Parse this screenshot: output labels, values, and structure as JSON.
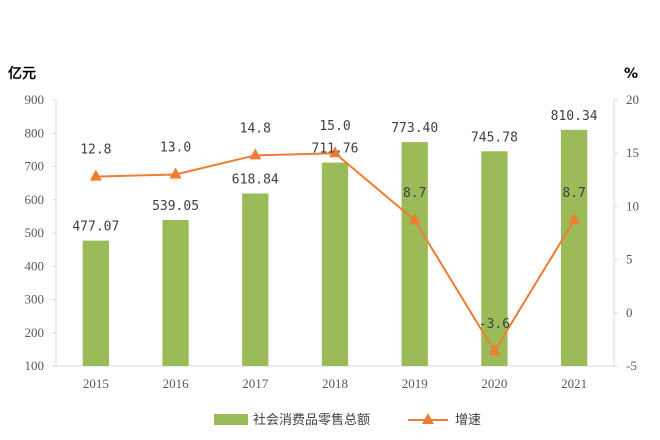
{
  "chart_data": {
    "type": "bar",
    "categories": [
      "2015",
      "2016",
      "2017",
      "2018",
      "2019",
      "2020",
      "2021"
    ],
    "series": [
      {
        "name": "社会消费品零售总额",
        "type": "bar",
        "axis": "left",
        "values": [
          477.07,
          539.05,
          618.84,
          711.76,
          773.4,
          745.78,
          810.34
        ],
        "labels": [
          "477.07",
          "539.05",
          "618.84",
          "711.76",
          "773.40",
          "745.78",
          "810.34"
        ],
        "color": "#9bbb59"
      },
      {
        "name": "增速",
        "type": "line",
        "axis": "right",
        "values": [
          12.8,
          13.0,
          14.8,
          15.0,
          8.7,
          -3.6,
          8.7
        ],
        "labels": [
          "12.8",
          "13.0",
          "14.8",
          "15.0",
          "8.7",
          "-3.6",
          "8.7"
        ],
        "color": "#ed7d31",
        "marker": "triangle"
      }
    ],
    "ylabel_left": "亿元",
    "ylabel_right": "%",
    "ylim_left": [
      100,
      900
    ],
    "yticks_left": [
      "100",
      "200",
      "300",
      "400",
      "500",
      "600",
      "700",
      "800",
      "900"
    ],
    "ylim_right": [
      -5,
      20
    ],
    "yticks_right": [
      "-5",
      "0",
      "5",
      "10",
      "15",
      "20"
    ],
    "grid": false,
    "legend": "bottom-center"
  }
}
